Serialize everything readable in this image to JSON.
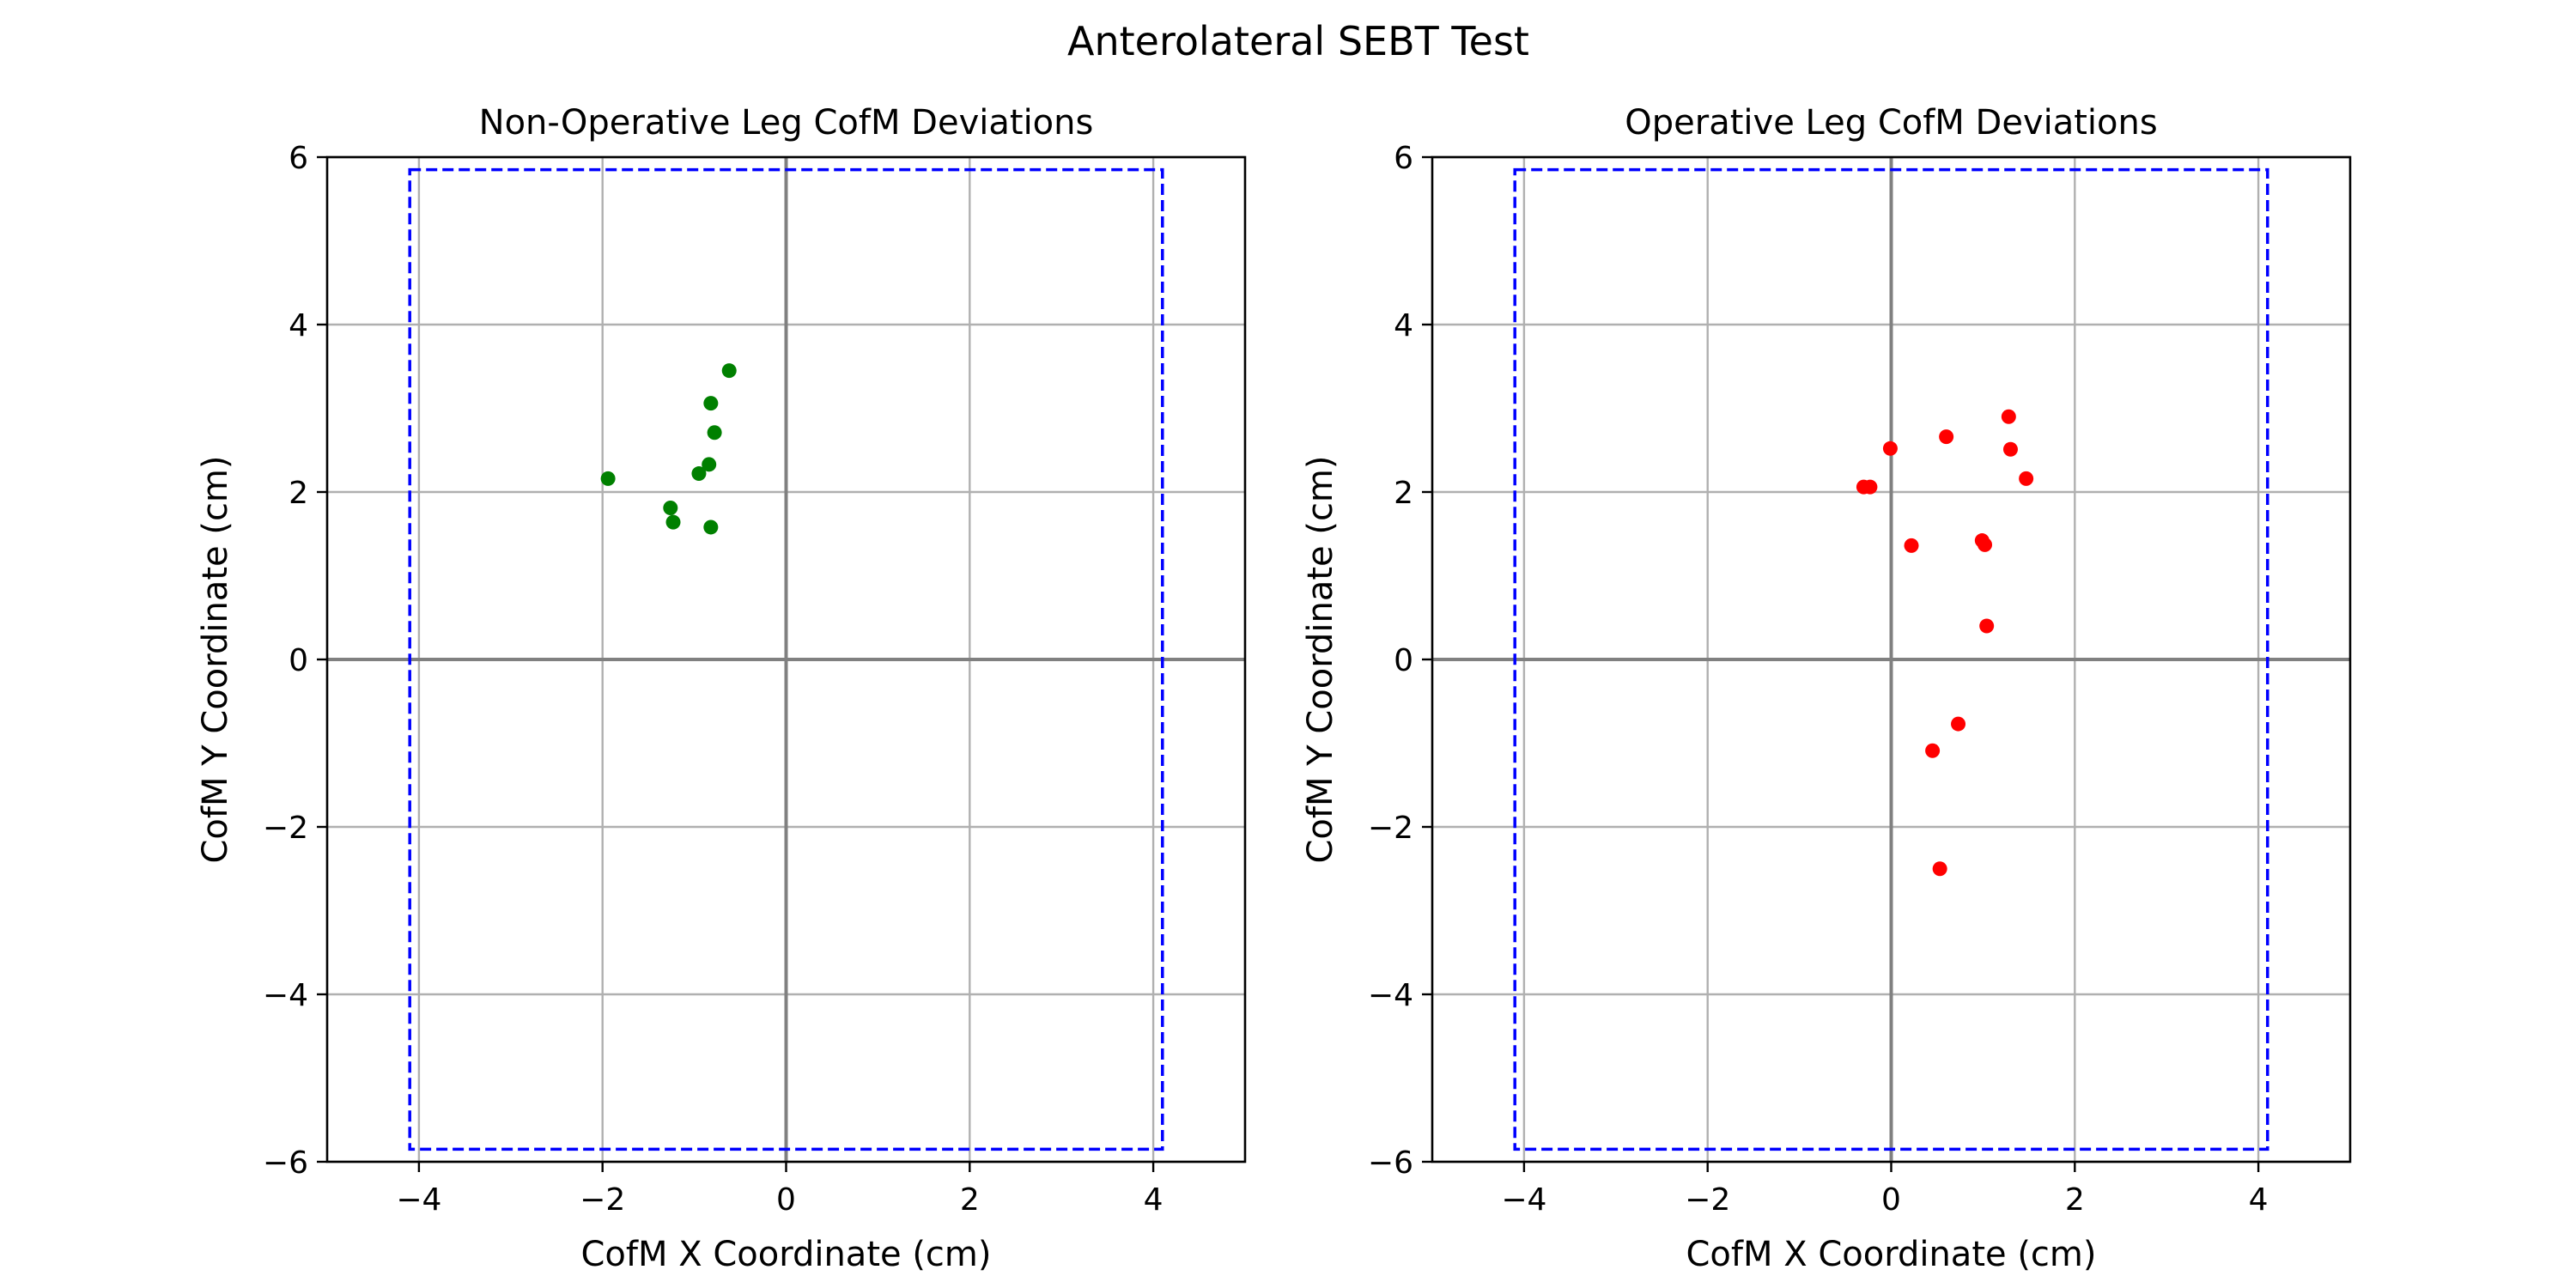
{
  "figure": {
    "title": "Anterolateral SEBT Test"
  },
  "chart_data": [
    {
      "type": "scatter",
      "title": "Non-Operative Leg CofM Deviations",
      "xlabel": "CofM X Coordinate (cm)",
      "ylabel": "CofM Y Coordinate (cm)",
      "xlim": [
        -5,
        5
      ],
      "ylim": [
        -6,
        6
      ],
      "xticks": [
        -4,
        -2,
        0,
        2,
        4
      ],
      "yticks": [
        -6,
        -4,
        -2,
        0,
        2,
        4,
        6
      ],
      "grid": true,
      "color": "#008000",
      "boundary": {
        "x": [
          -4.1,
          4.1
        ],
        "y": [
          -5.85,
          5.85
        ],
        "color": "#0000ff",
        "style": "dashed"
      },
      "points": [
        {
          "x": -0.62,
          "y": 3.45
        },
        {
          "x": -0.82,
          "y": 3.06
        },
        {
          "x": -0.78,
          "y": 2.71
        },
        {
          "x": -0.84,
          "y": 2.33
        },
        {
          "x": -0.95,
          "y": 2.22
        },
        {
          "x": -1.94,
          "y": 2.16
        },
        {
          "x": -1.26,
          "y": 1.81
        },
        {
          "x": -1.23,
          "y": 1.64
        },
        {
          "x": -0.82,
          "y": 1.58
        }
      ]
    },
    {
      "type": "scatter",
      "title": "Operative Leg CofM Deviations",
      "xlabel": "CofM X Coordinate (cm)",
      "ylabel": "CofM Y Coordinate (cm)",
      "xlim": [
        -5,
        5
      ],
      "ylim": [
        -6,
        6
      ],
      "xticks": [
        -4,
        -2,
        0,
        2,
        4
      ],
      "yticks": [
        -6,
        -4,
        -2,
        0,
        2,
        4,
        6
      ],
      "grid": true,
      "color": "#ff0000",
      "boundary": {
        "x": [
          -4.1,
          4.1
        ],
        "y": [
          -5.85,
          5.85
        ],
        "color": "#0000ff",
        "style": "dashed"
      },
      "points": [
        {
          "x": 1.28,
          "y": 2.9
        },
        {
          "x": 0.6,
          "y": 2.66
        },
        {
          "x": -0.01,
          "y": 2.52
        },
        {
          "x": 1.3,
          "y": 2.51
        },
        {
          "x": 1.47,
          "y": 2.16
        },
        {
          "x": -0.3,
          "y": 2.06
        },
        {
          "x": -0.23,
          "y": 2.06
        },
        {
          "x": 0.22,
          "y": 1.36
        },
        {
          "x": 0.99,
          "y": 1.42
        },
        {
          "x": 1.02,
          "y": 1.37
        },
        {
          "x": 1.04,
          "y": 0.4
        },
        {
          "x": 0.73,
          "y": -0.77
        },
        {
          "x": 0.45,
          "y": -1.09
        },
        {
          "x": 0.53,
          "y": -2.5
        }
      ]
    }
  ]
}
